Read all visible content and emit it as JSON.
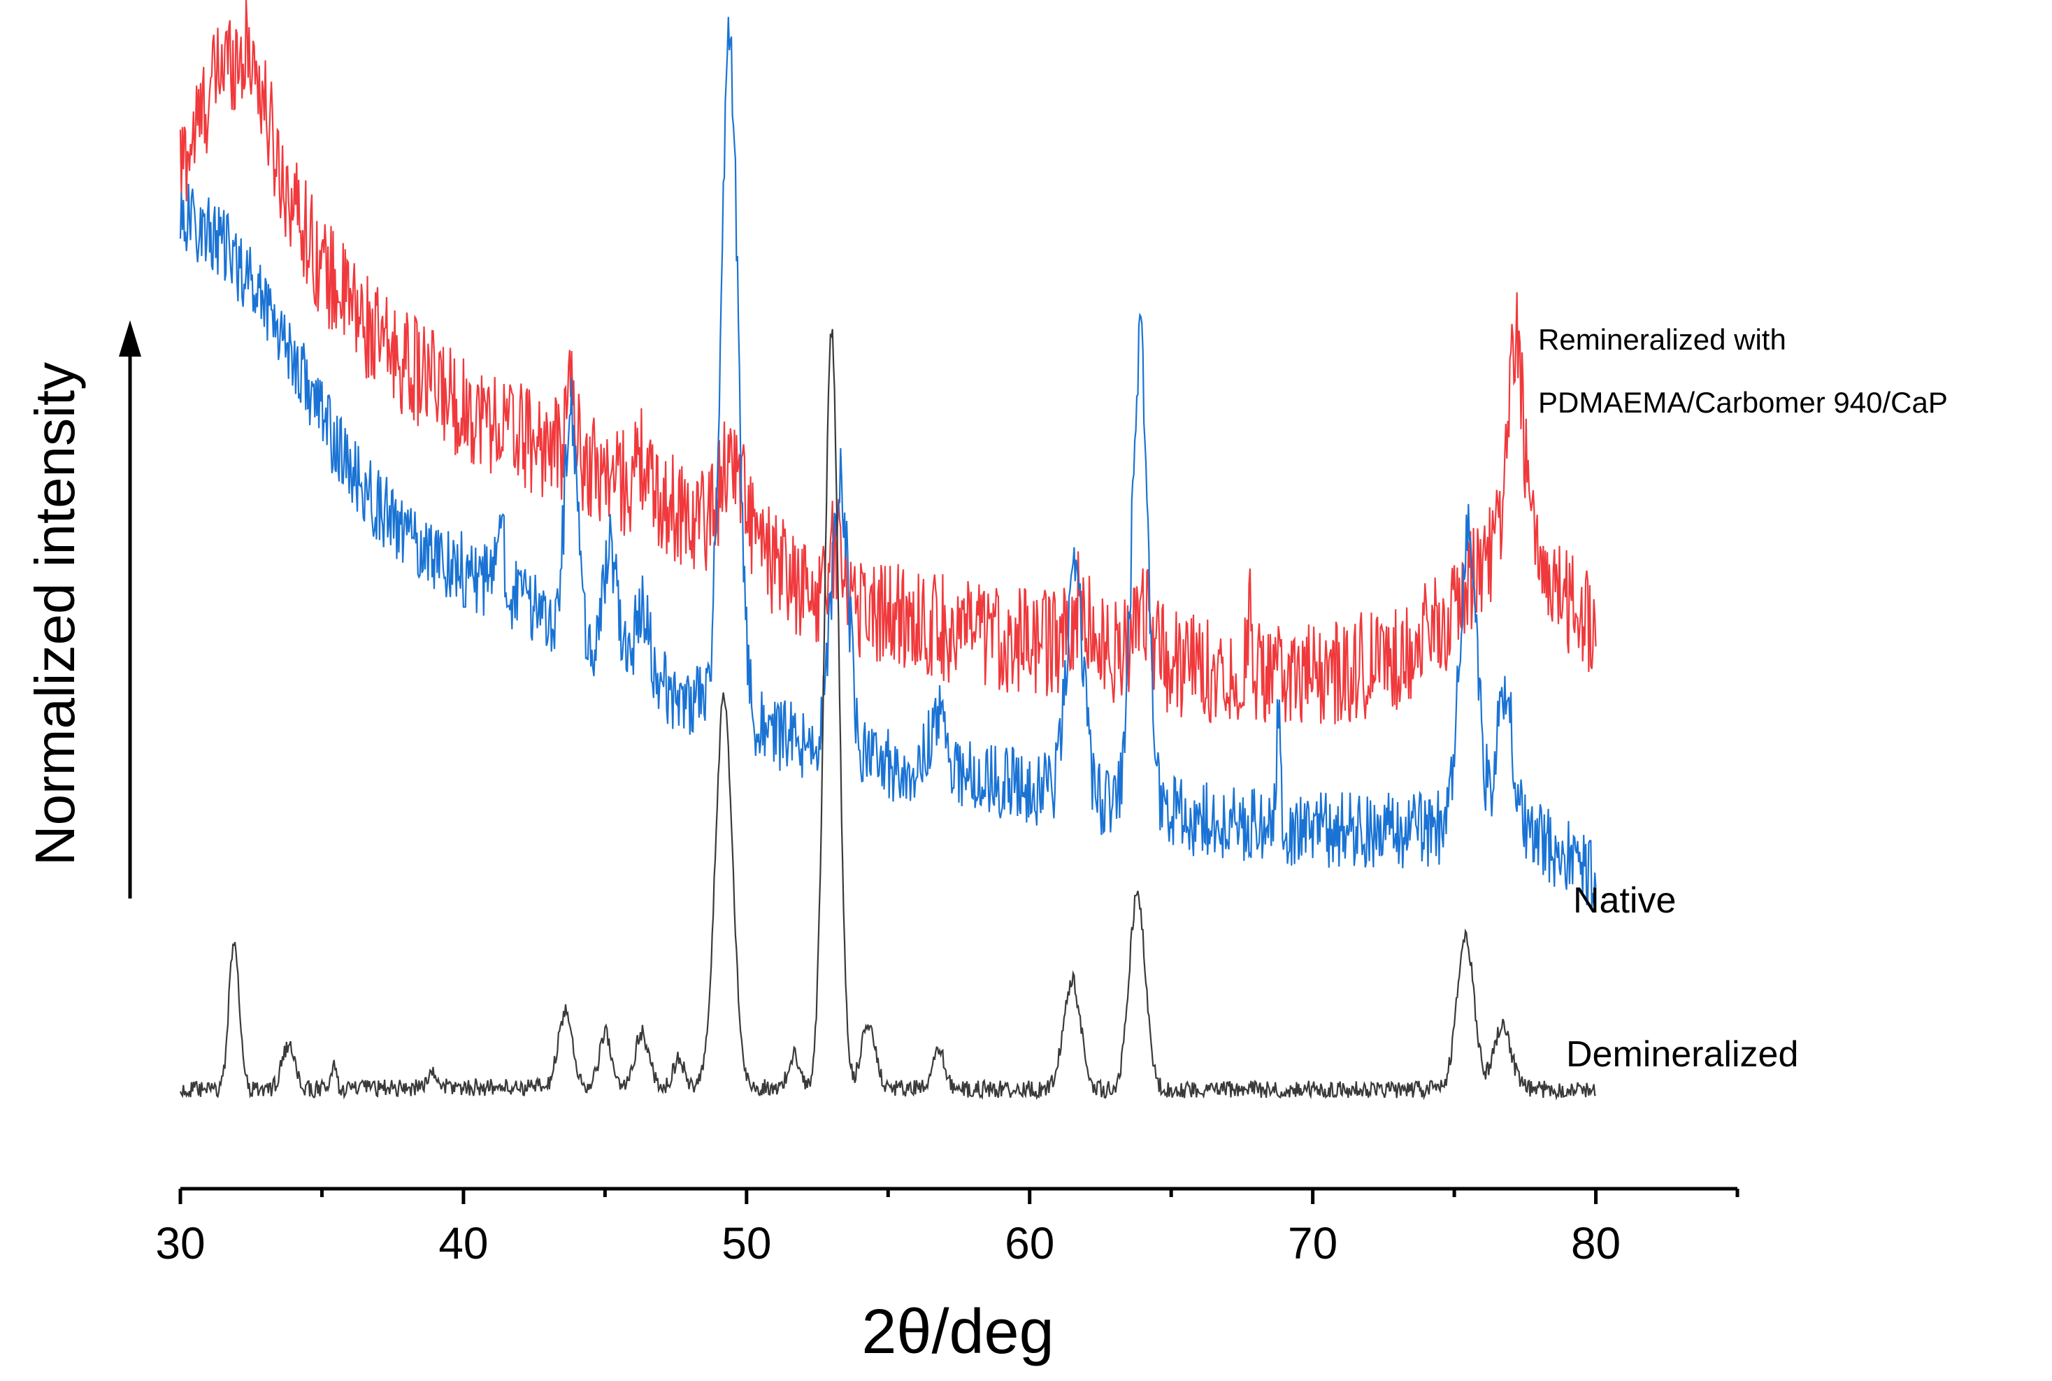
{
  "chart_data": {
    "type": "line",
    "title": "",
    "xlabel": "2θ/deg",
    "ylabel": "Normalized intensity",
    "xlim": [
      30,
      85
    ],
    "xticks": [
      30,
      40,
      50,
      60,
      70,
      80
    ],
    "grid": false,
    "x_range": [
      30,
      80
    ],
    "series": [
      {
        "name": "Remineralized with PDMAEMA/Carbomer 940/CaP",
        "label_lines": [
          "Remineralized with",
          "PDMAEMA/Carbomer 940/CaP"
        ],
        "color": "#f0393c",
        "noise": 0.05,
        "baseline": [
          [
            30,
            0.86
          ],
          [
            31.5,
            0.96
          ],
          [
            32.5,
            0.97
          ],
          [
            33.5,
            0.86
          ],
          [
            35,
            0.77
          ],
          [
            37,
            0.7
          ],
          [
            40,
            0.64
          ],
          [
            45,
            0.58
          ],
          [
            48,
            0.54
          ],
          [
            50,
            0.52
          ],
          [
            52,
            0.47
          ],
          [
            55,
            0.45
          ],
          [
            58,
            0.43
          ],
          [
            62,
            0.42
          ],
          [
            66,
            0.4
          ],
          [
            70,
            0.39
          ],
          [
            73,
            0.41
          ],
          [
            75,
            0.45
          ],
          [
            76,
            0.5
          ],
          [
            77,
            0.53
          ],
          [
            78,
            0.5
          ],
          [
            79,
            0.46
          ],
          [
            80,
            0.44
          ]
        ],
        "peaks": [
          [
            43.8,
            0.07,
            0.15
          ],
          [
            46.3,
            0.03,
            0.2
          ],
          [
            49.5,
            0.07,
            0.4
          ],
          [
            53.2,
            0.05,
            0.3
          ],
          [
            61.8,
            0.04,
            0.25
          ],
          [
            64.0,
            0.05,
            0.3
          ],
          [
            67.8,
            0.06,
            0.08
          ],
          [
            77.2,
            0.18,
            0.25
          ]
        ]
      },
      {
        "name": "Native",
        "label_lines": [
          "Native"
        ],
        "color": "#1a73d4",
        "noise": 0.035,
        "baseline": [
          [
            30,
            0.82
          ],
          [
            31.5,
            0.79
          ],
          [
            33,
            0.74
          ],
          [
            34.5,
            0.66
          ],
          [
            36,
            0.58
          ],
          [
            38,
            0.52
          ],
          [
            40,
            0.49
          ],
          [
            43,
            0.45
          ],
          [
            45,
            0.41
          ],
          [
            48,
            0.37
          ],
          [
            52,
            0.33
          ],
          [
            55,
            0.31
          ],
          [
            58,
            0.3
          ],
          [
            62,
            0.28
          ],
          [
            66,
            0.26
          ],
          [
            70,
            0.25
          ],
          [
            74,
            0.25
          ],
          [
            76,
            0.26
          ],
          [
            78,
            0.24
          ],
          [
            80,
            0.21
          ]
        ],
        "peaks": [
          [
            41.3,
            0.09,
            0.1
          ],
          [
            43.8,
            0.2,
            0.22
          ],
          [
            45.2,
            0.1,
            0.25
          ],
          [
            46.3,
            0.06,
            0.25
          ],
          [
            49.4,
            0.62,
            0.3
          ],
          [
            53.3,
            0.25,
            0.3
          ],
          [
            56.8,
            0.05,
            0.3
          ],
          [
            61.6,
            0.2,
            0.3
          ],
          [
            63.9,
            0.43,
            0.28
          ],
          [
            68.8,
            0.12,
            0.07
          ],
          [
            75.5,
            0.27,
            0.3
          ],
          [
            76.8,
            0.12,
            0.3
          ]
        ]
      },
      {
        "name": "Demineralized",
        "label_lines": [
          "Demineralized"
        ],
        "color": "#3a3a3a",
        "noise": 0.008,
        "baseline": [
          [
            30,
            0.01
          ],
          [
            40,
            0.013
          ],
          [
            50,
            0.013
          ],
          [
            60,
            0.011
          ],
          [
            70,
            0.011
          ],
          [
            80,
            0.011
          ]
        ],
        "peaks": [
          [
            31.9,
            0.14,
            0.18
          ],
          [
            33.8,
            0.04,
            0.22
          ],
          [
            35.4,
            0.02,
            0.1
          ],
          [
            38.9,
            0.012,
            0.2
          ],
          [
            43.6,
            0.07,
            0.25
          ],
          [
            45.0,
            0.05,
            0.2
          ],
          [
            46.3,
            0.05,
            0.25
          ],
          [
            47.6,
            0.025,
            0.2
          ],
          [
            49.2,
            0.36,
            0.3
          ],
          [
            51.7,
            0.03,
            0.2
          ],
          [
            53.0,
            0.7,
            0.25
          ],
          [
            54.3,
            0.06,
            0.25
          ],
          [
            56.8,
            0.035,
            0.2
          ],
          [
            61.5,
            0.1,
            0.3
          ],
          [
            63.8,
            0.18,
            0.28
          ],
          [
            75.4,
            0.14,
            0.3
          ],
          [
            76.7,
            0.06,
            0.3
          ]
        ]
      }
    ]
  }
}
